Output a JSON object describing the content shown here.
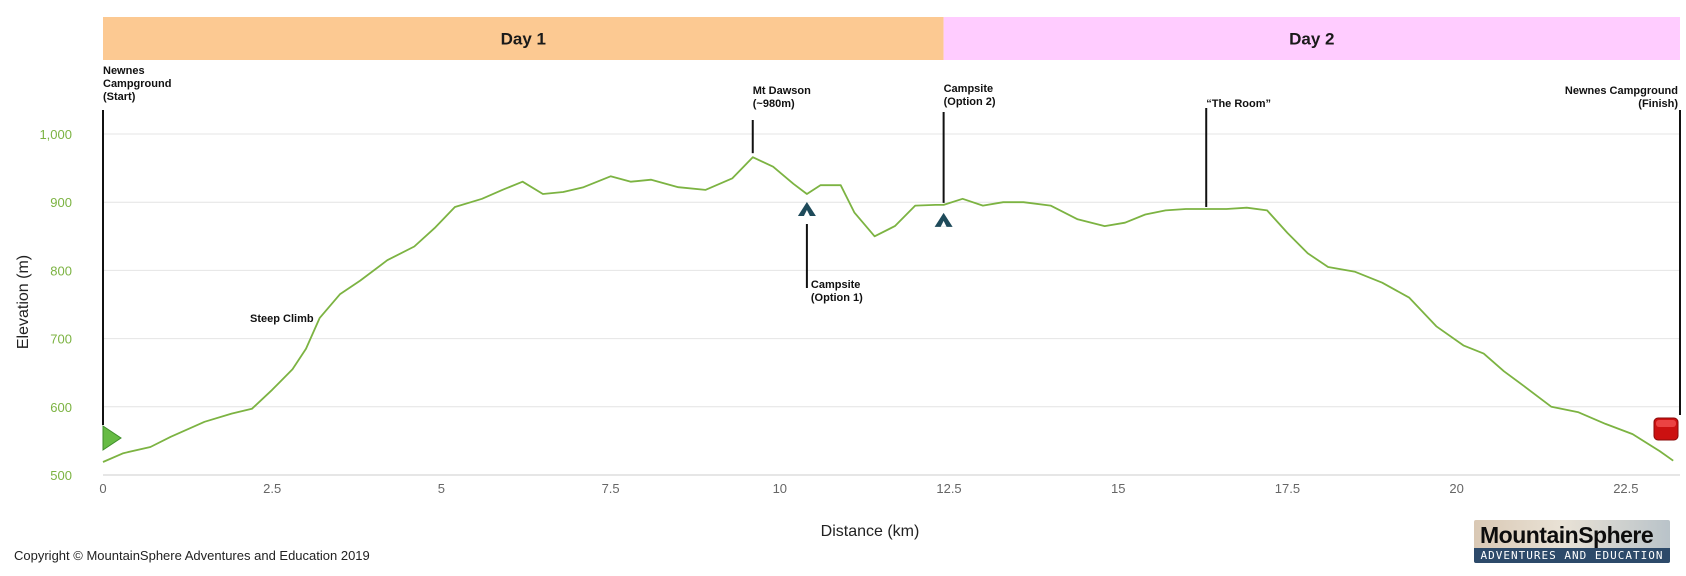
{
  "chart_data": {
    "type": "line",
    "title": "",
    "xlabel": "Distance (km)",
    "ylabel": "Elevation (m)",
    "xlim": [
      0,
      23.3
    ],
    "ylim": [
      500,
      1000
    ],
    "xticks": [
      "0",
      "2.5",
      "5",
      "7.5",
      "10",
      "12.5",
      "15",
      "17.5",
      "20",
      "22.5"
    ],
    "xtick_values": [
      0,
      2.5,
      5,
      7.5,
      10,
      12.5,
      15,
      17.5,
      20,
      22.5
    ],
    "yticks": [
      "500",
      "600",
      "700",
      "800",
      "900",
      "1,000"
    ],
    "ytick_values": [
      500,
      600,
      700,
      800,
      900,
      1000
    ],
    "grid": true,
    "line_color": "#7cb342",
    "bands": [
      {
        "label": "Day 1",
        "x_start": 0,
        "x_end": 12.42,
        "color": "#fcc992"
      },
      {
        "label": "Day 2",
        "x_start": 12.42,
        "x_end": 23.3,
        "color": "#ffccff"
      }
    ],
    "series": [
      {
        "name": "",
        "x": [
          0,
          0.3,
          0.7,
          1.0,
          1.5,
          1.9,
          2.2,
          2.5,
          2.8,
          3.0,
          3.2,
          3.5,
          3.8,
          4.2,
          4.6,
          4.9,
          5.2,
          5.6,
          5.9,
          6.2,
          6.5,
          6.8,
          7.1,
          7.5,
          7.8,
          8.1,
          8.5,
          8.9,
          9.3,
          9.6,
          9.9,
          10.2,
          10.4,
          10.6,
          10.9,
          11.1,
          11.4,
          11.7,
          12.0,
          12.3,
          12.42,
          12.7,
          13.0,
          13.3,
          13.6,
          14.0,
          14.4,
          14.8,
          15.1,
          15.4,
          15.7,
          16.0,
          16.3,
          16.6,
          16.9,
          17.2,
          17.5,
          17.8,
          18.1,
          18.5,
          18.9,
          19.3,
          19.7,
          20.1,
          20.4,
          20.7,
          21.0,
          21.4,
          21.8,
          22.2,
          22.6,
          23.0,
          23.2
        ],
        "y": [
          519,
          532,
          541,
          556,
          578,
          590,
          597,
          625,
          655,
          685,
          730,
          765,
          785,
          815,
          835,
          862,
          893,
          905,
          918,
          930,
          912,
          915,
          922,
          938,
          930,
          933,
          922,
          918,
          935,
          966,
          952,
          927,
          912,
          925,
          925,
          885,
          850,
          865,
          895,
          896,
          896,
          905,
          895,
          900,
          900,
          895,
          875,
          865,
          870,
          882,
          888,
          890,
          890,
          890,
          892,
          888,
          855,
          825,
          805,
          798,
          782,
          760,
          718,
          690,
          678,
          652,
          630,
          600,
          592,
          575,
          560,
          535,
          521
        ]
      }
    ],
    "annotations": [
      {
        "id": "start",
        "lines": [
          "Newnes",
          "Campground",
          "(Start)"
        ],
        "x": 0
      },
      {
        "id": "steep",
        "lines": [
          "Steep Climb"
        ],
        "x": 3.0
      },
      {
        "id": "dawson",
        "lines": [
          "Mt Dawson",
          "(~980m)"
        ],
        "x": 9.6
      },
      {
        "id": "camp1",
        "lines": [
          "Campsite",
          "(Option 1)"
        ],
        "x": 10.4
      },
      {
        "id": "camp2",
        "lines": [
          "Campsite",
          "(Option 2)"
        ],
        "x": 12.42
      },
      {
        "id": "room",
        "lines": [
          "“The Room”"
        ],
        "x": 16.3
      },
      {
        "id": "finish",
        "lines": [
          "Newnes Campground",
          "(Finish)"
        ],
        "x": 23.3
      }
    ],
    "markers": [
      {
        "type": "start-flag",
        "x": 0,
        "color": "#66bb44"
      },
      {
        "type": "tent-icon",
        "x": 10.4,
        "color": "#1e4a5a"
      },
      {
        "type": "tent-icon",
        "x": 12.42,
        "color": "#1e4a5a"
      },
      {
        "type": "finish-flag",
        "x": 23.3,
        "color": "#cc1111"
      }
    ]
  },
  "footer": {
    "copyright": "Copyright © MountainSphere Adventures and Education 2019"
  },
  "logo": {
    "name": "MountainSphere",
    "tagline": "ADVENTURES AND EDUCATION"
  }
}
